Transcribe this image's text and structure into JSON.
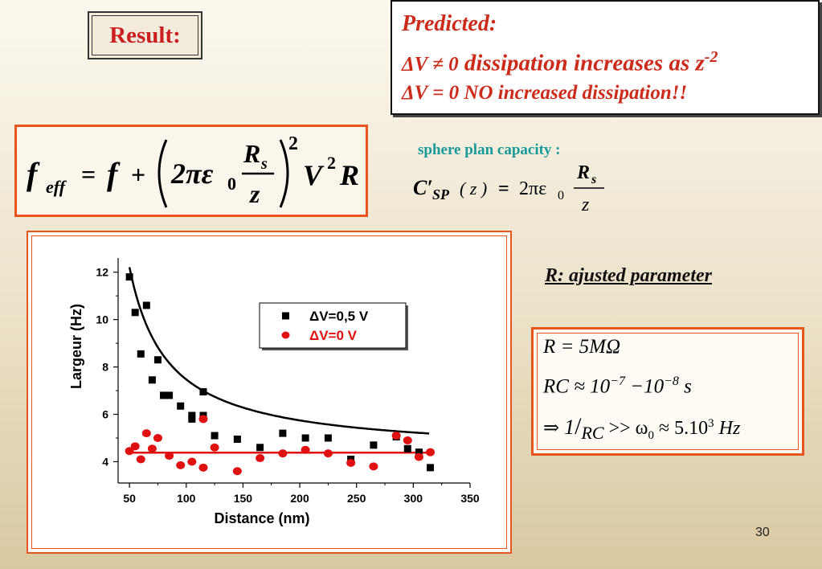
{
  "result_label": "Result:",
  "predicted": {
    "title": "Predicted:",
    "line1_lhs": "ΔV ≠ 0",
    "line1_rhs": "dissipation increases as z",
    "line1_exp": "-2",
    "line2": "ΔV = 0 NO increased dissipation!!"
  },
  "formula_main": {
    "f": "f",
    "eff": "eff",
    "eq": "=",
    "plus": "+",
    "two_pi_eps": "2πε",
    "zero": "0",
    "R": "R",
    "s": "s",
    "z": "z",
    "sq": "2",
    "V": "V",
    "Vsq": "2",
    "Rtail": "R"
  },
  "sphere": {
    "label": "sphere plan capacity :",
    "C": "C′",
    "SP": "SP",
    "arg": "( z )",
    "eq": "=",
    "two_pi_eps": "2πε",
    "zero": "0",
    "R": "R",
    "s": "s",
    "z": "z"
  },
  "r_param_label": "R: ajusted parameter",
  "r_box": {
    "line1": "R = 5MΩ",
    "line2_a": "RC ≈ 10",
    "line2_e1": "−7",
    "line2_b": " −10",
    "line2_e2": "−8",
    "line2_c": " s",
    "line3_arrow": "⇒",
    "line3_num": "1",
    "line3_den": "RC",
    "line3_b": " >> ω",
    "line3_sub": "0",
    "line3_c": " ≈ 5.10",
    "line3_exp": "3",
    "line3_d": " Hz"
  },
  "page_number": "30",
  "colors": {
    "accent_orange": "#e8541c",
    "predicted_red": "#cc2b1a",
    "sphere_teal": "#1a9a9a",
    "series_black": "#000000",
    "series_red": "#e01010"
  },
  "chart_data": {
    "type": "scatter",
    "xlabel": "Distance  (nm)",
    "ylabel": "Largeur (Hz)",
    "xlim": [
      40,
      350
    ],
    "ylim": [
      3.1,
      12.6
    ],
    "xticks": [
      50,
      100,
      150,
      200,
      250,
      300,
      350
    ],
    "yticks": [
      4,
      6,
      8,
      10,
      12
    ],
    "legend_position": "top-right",
    "series": [
      {
        "name": "ΔV=0,5 V",
        "marker": "square",
        "color": "#000000",
        "x": [
          50,
          55,
          60,
          65,
          70,
          75,
          80,
          85,
          95,
          105,
          105,
          115,
          115,
          125,
          145,
          165,
          185,
          205,
          225,
          245,
          265,
          285,
          295,
          305,
          315
        ],
        "y": [
          11.8,
          10.3,
          8.55,
          10.6,
          7.45,
          8.3,
          6.8,
          6.8,
          6.35,
          5.95,
          5.8,
          6.95,
          5.95,
          5.1,
          4.95,
          4.6,
          5.2,
          5.0,
          5.0,
          4.1,
          4.7,
          5.05,
          4.55,
          4.4,
          3.75
        ]
      },
      {
        "name": "ΔV=0 V",
        "marker": "circle",
        "color": "#e01010",
        "x": [
          50,
          55,
          60,
          65,
          70,
          75,
          85,
          95,
          105,
          115,
          115,
          125,
          145,
          165,
          185,
          205,
          225,
          245,
          265,
          285,
          295,
          305,
          315
        ],
        "y": [
          4.45,
          4.65,
          4.1,
          5.2,
          4.55,
          5.0,
          4.25,
          3.85,
          4.0,
          5.8,
          3.75,
          4.6,
          3.6,
          4.15,
          4.35,
          4.5,
          4.35,
          3.95,
          3.8,
          5.1,
          4.9,
          4.2,
          4.4
        ]
      }
    ],
    "fits": [
      {
        "series": "ΔV=0,5 V",
        "color": "#000000",
        "form": "a + b/(x-c)",
        "a": 4.3,
        "b": 265,
        "c": 16.5,
        "x_range": [
          50,
          315
        ]
      },
      {
        "series": "ΔV=0 V",
        "color": "#e01010",
        "form": "constant",
        "value": 4.38,
        "x_range": [
          50,
          315
        ]
      }
    ]
  }
}
